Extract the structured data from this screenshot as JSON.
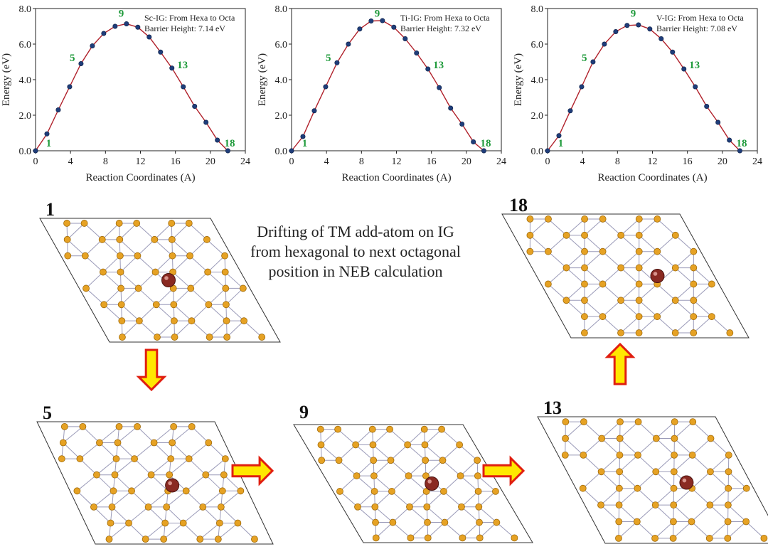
{
  "colors": {
    "curve": "#b0202a",
    "point": "#1f3d7a",
    "label_green": "#1e9a3a",
    "atom_fill": "#e6a224",
    "atom_stroke": "#a06a08",
    "bond": "#9a9ab8",
    "tm_atom": "#8a2a22",
    "arrow_fill": "#ffe800",
    "arrow_stroke": "#e01e10"
  },
  "caption": "Drifting of TM add-atom on IG from hexagonal to next octagonal position in NEB calculation",
  "chart_data": [
    {
      "type": "line",
      "title": "Sc-IG: From Hexa to Octa",
      "subtitle": "Barrier Height: 7.14 eV",
      "xlabel": "Reaction Coordinates (A)",
      "ylabel": "Energy (eV)",
      "xlim": [
        0,
        24
      ],
      "ylim": [
        0,
        8
      ],
      "xticks": [
        "0",
        "4",
        "8",
        "12",
        "16",
        "20",
        "24"
      ],
      "yticks": [
        "0.0",
        "2.0",
        "4.0",
        "6.0",
        "8.0"
      ],
      "series": [
        {
          "x": [
            0,
            1.3,
            2.6,
            3.9,
            5.2,
            6.5,
            7.8,
            9.1,
            10.4,
            11.7,
            13.0,
            14.3,
            15.6,
            16.9,
            18.2,
            19.5,
            20.8,
            22.0
          ],
          "y": [
            0.0,
            0.95,
            2.3,
            3.6,
            4.9,
            5.9,
            6.6,
            7.0,
            7.14,
            6.95,
            6.4,
            5.55,
            4.65,
            3.6,
            2.5,
            1.6,
            0.6,
            0.0
          ]
        }
      ],
      "point_labels": [
        {
          "text": "1",
          "x": 1.2,
          "y": 0.25
        },
        {
          "text": "5",
          "x": 3.9,
          "y": 5.05
        },
        {
          "text": "9",
          "x": 9.5,
          "y": 7.55
        },
        {
          "text": "13",
          "x": 16.2,
          "y": 4.65
        },
        {
          "text": "18",
          "x": 21.6,
          "y": 0.25
        }
      ],
      "grid": false
    },
    {
      "type": "line",
      "title": "Ti-IG: From Hexa to Octa",
      "subtitle": "Barrier Height: 7.32 eV",
      "xlabel": "Reaction Coordinates (A)",
      "ylabel": "Energy (eV)",
      "xlim": [
        0,
        24
      ],
      "ylim": [
        0,
        8
      ],
      "xticks": [
        "0",
        "4",
        "8",
        "12",
        "16",
        "20",
        "24"
      ],
      "yticks": [
        "0.0",
        "2.0",
        "4.0",
        "6.0",
        "8.0"
      ],
      "series": [
        {
          "x": [
            0,
            1.3,
            2.6,
            3.9,
            5.2,
            6.5,
            7.8,
            9.1,
            10.4,
            11.7,
            13.0,
            14.3,
            15.6,
            16.9,
            18.2,
            19.5,
            20.8,
            22.0
          ],
          "y": [
            0.0,
            0.8,
            2.25,
            3.6,
            4.95,
            6.0,
            6.85,
            7.3,
            7.32,
            6.95,
            6.3,
            5.5,
            4.6,
            3.55,
            2.4,
            1.5,
            0.5,
            0.0
          ]
        }
      ],
      "point_labels": [
        {
          "text": "1",
          "x": 1.2,
          "y": 0.25
        },
        {
          "text": "5",
          "x": 3.9,
          "y": 5.05
        },
        {
          "text": "9",
          "x": 9.5,
          "y": 7.55
        },
        {
          "text": "13",
          "x": 16.2,
          "y": 4.65
        },
        {
          "text": "18",
          "x": 21.6,
          "y": 0.25
        }
      ],
      "grid": false
    },
    {
      "type": "line",
      "title": "V-IG: From Hexa to Octa",
      "subtitle": "Barrier Height: 7.08 eV",
      "xlabel": "Reaction Coordinates (A)",
      "ylabel": "Energy (eV)",
      "xlim": [
        0,
        24
      ],
      "ylim": [
        0,
        8
      ],
      "xticks": [
        "0",
        "4",
        "8",
        "12",
        "16",
        "20",
        "24"
      ],
      "yticks": [
        "0.0",
        "2.0",
        "4.0",
        "6.0",
        "8.0"
      ],
      "series": [
        {
          "x": [
            0,
            1.3,
            2.6,
            3.9,
            5.2,
            6.5,
            7.8,
            9.1,
            10.4,
            11.7,
            13.0,
            14.3,
            15.6,
            16.9,
            18.2,
            19.5,
            20.8,
            22.0
          ],
          "y": [
            0.0,
            0.85,
            2.25,
            3.6,
            5.0,
            6.0,
            6.7,
            7.05,
            7.08,
            6.85,
            6.3,
            5.55,
            4.6,
            3.6,
            2.5,
            1.6,
            0.6,
            0.0
          ]
        }
      ],
      "point_labels": [
        {
          "text": "1",
          "x": 1.2,
          "y": 0.25
        },
        {
          "text": "5",
          "x": 3.9,
          "y": 5.05
        },
        {
          "text": "9",
          "x": 9.5,
          "y": 7.55
        },
        {
          "text": "13",
          "x": 16.2,
          "y": 4.65
        },
        {
          "text": "18",
          "x": 21.6,
          "y": 0.25
        }
      ],
      "grid": false
    }
  ],
  "structures": [
    {
      "label": "1",
      "atom_position": "hexagonal"
    },
    {
      "label": "5",
      "atom_position": "intermediate"
    },
    {
      "label": "9",
      "atom_position": "intermediate"
    },
    {
      "label": "13",
      "atom_position": "intermediate"
    },
    {
      "label": "18",
      "atom_position": "octagonal"
    }
  ],
  "arrows": [
    "down",
    "right",
    "right",
    "up"
  ]
}
